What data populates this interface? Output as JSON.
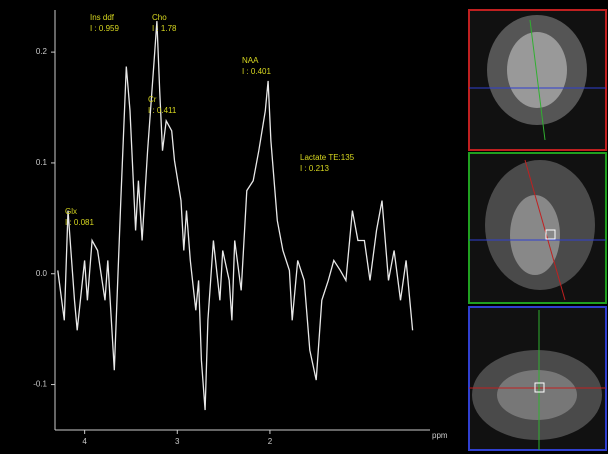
{
  "chart_data": {
    "type": "line",
    "x_label": "ppm",
    "xlim": [
      4.32,
      0.38
    ],
    "xticks": [
      4,
      3,
      2
    ],
    "ylim": [
      -0.141,
      0.238
    ],
    "yticks": [
      0.2,
      0.1,
      {
        "value": 0,
        "label": "0.0"
      },
      -0.1
    ],
    "series": [
      {
        "color": "#e8e8e8",
        "x": [
          4.29,
          4.22,
          4.18,
          4.11,
          4.08,
          4.0,
          3.97,
          3.92,
          3.86,
          3.78,
          3.75,
          3.68,
          3.61,
          3.55,
          3.51,
          3.45,
          3.42,
          3.38,
          3.32,
          3.25,
          3.22,
          3.19,
          3.16,
          3.12,
          3.06,
          3.03,
          2.96,
          2.93,
          2.9,
          2.86,
          2.8,
          2.77,
          2.74,
          2.7,
          2.67,
          2.61,
          2.54,
          2.51,
          2.44,
          2.41,
          2.38,
          2.31,
          2.25,
          2.18,
          2.12,
          2.05,
          2.02,
          1.99,
          1.92,
          1.86,
          1.79,
          1.76,
          1.7,
          1.63,
          1.57,
          1.5,
          1.44,
          1.37,
          1.31,
          1.24,
          1.18,
          1.11,
          1.05,
          0.98,
          0.92,
          0.85,
          0.79,
          0.72,
          0.66,
          0.59,
          0.53,
          0.46
        ],
        "values": [
          0.003,
          -0.042,
          0.057,
          -0.024,
          -0.051,
          0.012,
          -0.024,
          0.03,
          0.021,
          -0.024,
          0.012,
          -0.087,
          0.066,
          0.187,
          0.147,
          0.039,
          0.084,
          0.03,
          0.111,
          0.192,
          0.228,
          0.165,
          0.111,
          0.138,
          0.129,
          0.102,
          0.066,
          0.021,
          0.057,
          0.012,
          -0.033,
          -0.006,
          -0.078,
          -0.123,
          -0.042,
          0.03,
          -0.024,
          0.021,
          -0.006,
          -0.042,
          0.03,
          -0.015,
          0.075,
          0.084,
          0.111,
          0.147,
          0.174,
          0.12,
          0.048,
          0.021,
          0.003,
          -0.042,
          0.012,
          -0.006,
          -0.069,
          -0.096,
          -0.024,
          -0.006,
          0.012,
          0.003,
          -0.006,
          0.057,
          0.03,
          0.03,
          -0.006,
          0.039,
          0.066,
          -0.006,
          0.021,
          -0.024,
          0.012,
          -0.051
        ]
      }
    ],
    "annotations": [
      {
        "name": "Ins ddf",
        "label": "I : 0.959"
      },
      {
        "name": "Cho",
        "label": "I : 1.78"
      },
      {
        "name": "Cr",
        "label": "I : 0.411"
      },
      {
        "name": "NAA",
        "label": "I : 0.401"
      },
      {
        "name": "Lactate TE:135",
        "label": "I : 0.213"
      },
      {
        "name": "Glx",
        "label": "I : 0.081"
      }
    ],
    "annotation_color": "#d8d820"
  }
}
